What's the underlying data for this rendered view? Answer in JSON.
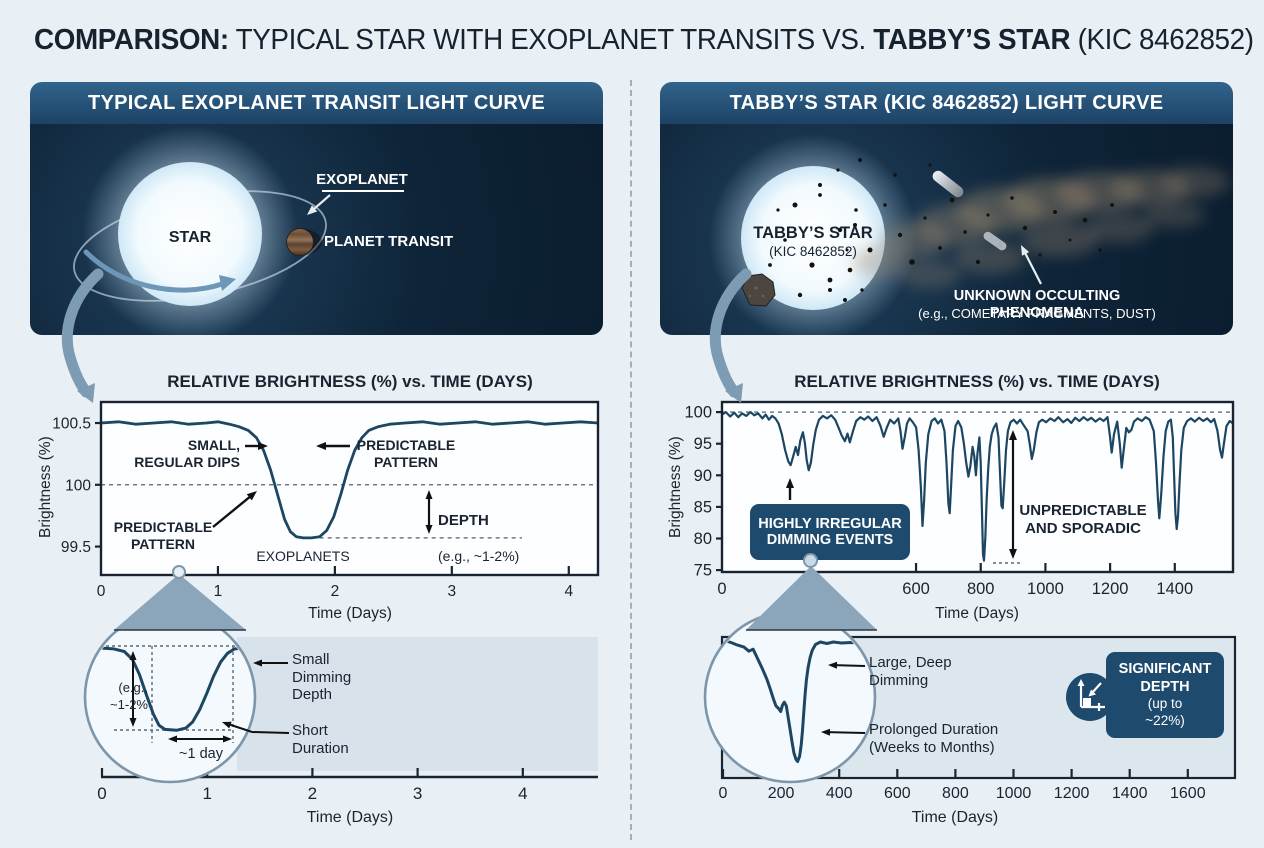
{
  "title": {
    "bold1": "COMPARISON:",
    "regular1": " TYPICAL STAR WITH EXOPLANET TRANSITS VS. ",
    "bold2": "TABBY’S STAR",
    "regular2": " (KIC 8462852)"
  },
  "left_panel": {
    "header": "TYPICAL EXOPLANET TRANSIT LIGHT CURVE",
    "star_label": "STAR",
    "exoplanet_label": "EXOPLANET",
    "planet_transit_label": "PLANET TRANSIT",
    "chart_title": "RELATIVE BRIGHTNESS (%) vs. TIME (DAYS)",
    "ylabel": "Brightness (%)",
    "xlabel": "Time (Days)",
    "annotations": {
      "small_regular_dips": "SMALL,\nREGULAR DIPS",
      "predictable_pattern_right": "PREDICTABLE\nPATTERN",
      "predictable_pattern_left": "PREDICTABLE\nPATTERN",
      "exoplanets": "EXOPLANETS",
      "depth_title": "DEPTH",
      "depth_sub": "(e.g., ~1-2%)"
    },
    "inset": {
      "depth_note": "(e.g.,\n~1-2%",
      "width_note": "~1 day",
      "label_depth": "Small\nDimming\nDepth",
      "label_duration": "Short\nDuration",
      "xlabel": "Time (Days)"
    }
  },
  "right_panel": {
    "header": "TABBY’S STAR (KIC 8462852) LIGHT CURVE",
    "star_label": "TABBY’S STAR",
    "star_sublabel": "(KIC 8462852)",
    "phenomena_label": "UNKNOWN OCCULTING PHENOMENA",
    "phenomena_sublabel": "(e.g., COMETARY FRAGMENTS, DUST)",
    "chart_title": "RELATIVE BRIGHTNESS (%) vs. TIME (DAYS)",
    "ylabel": "Brightness (%)",
    "xlabel": "Time (Days)",
    "annotations": {
      "irregular": "HIGHLY IRREGULAR\nDIMMING EVENTS",
      "unpredictable": "UNPREDICTABLE\nAND SPORADIC"
    },
    "inset": {
      "label_dimming": "Large, Deep\nDimming",
      "label_duration": "Prolonged Duration\n(Weeks to Months)",
      "xlabel": "Time (Days)",
      "badge": {
        "line1": "SIGNIFICANT",
        "line2": "DEPTH",
        "line3": "(up to",
        "line4": "~22%)"
      }
    }
  },
  "colors": {
    "page_bg": "#e9f0f5",
    "panel_header": "#24557d",
    "panel_body": "#0e2438",
    "navy_accent": "#1e4a6e",
    "curve": "#1d4663",
    "ink": "#1a2430",
    "steel_arrow": "#7d9bb3",
    "wedge": "#8ba6bb",
    "inset_fill": "#f3f9fc",
    "inset_stroke": "#7e96aa",
    "panel_light": "#d8e2ea",
    "panel_light2": "#dce6ed",
    "dashed": "#6b7a87",
    "white": "#ffffff"
  },
  "chart_data": [
    {
      "id": "typical_transit_main",
      "type": "line",
      "title": "RELATIVE BRIGHTNESS (%) vs. TIME (DAYS)",
      "xlabel": "Time (Days)",
      "ylabel": "Brightness (%)",
      "xlim": [
        0,
        4.25
      ],
      "ylim": [
        99.27,
        100.67
      ],
      "xticks": [
        0,
        1,
        2,
        3,
        4
      ],
      "yticks": [
        100.5,
        100.0,
        99.5
      ],
      "baseline_dashed": 100.0,
      "dip_level_dashed": {
        "y": 99.57,
        "x1": 1.87,
        "x2": 3.6
      },
      "points": [
        [
          0,
          100.5
        ],
        [
          0.15,
          100.51
        ],
        [
          0.3,
          100.49
        ],
        [
          0.45,
          100.5
        ],
        [
          0.6,
          100.51
        ],
        [
          0.75,
          100.49
        ],
        [
          0.9,
          100.5
        ],
        [
          1.0,
          100.51
        ],
        [
          1.1,
          100.49
        ],
        [
          1.18,
          100.47
        ],
        [
          1.26,
          100.44
        ],
        [
          1.33,
          100.38
        ],
        [
          1.39,
          100.28
        ],
        [
          1.45,
          100.12
        ],
        [
          1.51,
          99.92
        ],
        [
          1.57,
          99.72
        ],
        [
          1.62,
          99.62
        ],
        [
          1.67,
          99.58
        ],
        [
          1.73,
          99.57
        ],
        [
          1.8,
          99.57
        ],
        [
          1.87,
          99.58
        ],
        [
          1.93,
          99.63
        ],
        [
          1.99,
          99.74
        ],
        [
          2.05,
          99.92
        ],
        [
          2.11,
          100.12
        ],
        [
          2.17,
          100.28
        ],
        [
          2.23,
          100.38
        ],
        [
          2.29,
          100.44
        ],
        [
          2.37,
          100.47
        ],
        [
          2.47,
          100.49
        ],
        [
          2.6,
          100.5
        ],
        [
          2.75,
          100.51
        ],
        [
          2.9,
          100.49
        ],
        [
          3.05,
          100.5
        ],
        [
          3.2,
          100.51
        ],
        [
          3.35,
          100.49
        ],
        [
          3.5,
          100.5
        ],
        [
          3.65,
          100.51
        ],
        [
          3.8,
          100.49
        ],
        [
          3.95,
          100.5
        ],
        [
          4.1,
          100.51
        ],
        [
          4.25,
          100.5
        ]
      ]
    },
    {
      "id": "tabbys_star_main",
      "type": "line",
      "title": "RELATIVE BRIGHTNESS (%) vs. TIME (DAYS)",
      "xlabel": "Time (Days)",
      "ylabel": "Brightness (%)",
      "xlim": [
        0,
        1580
      ],
      "ylim": [
        74.7,
        101.6
      ],
      "xticks": [
        0,
        600,
        800,
        1000,
        1200,
        1400
      ],
      "xticks_hidden_by_magnifier": [
        200,
        400
      ],
      "yticks": [
        100,
        95,
        90,
        85,
        80,
        75
      ],
      "baseline_dashed": 100,
      "points": [
        [
          0,
          99.6
        ],
        [
          12,
          100
        ],
        [
          25,
          99.3
        ],
        [
          38,
          99.9
        ],
        [
          50,
          99.2
        ],
        [
          62,
          99.8
        ],
        [
          75,
          99.4
        ],
        [
          88,
          100
        ],
        [
          100,
          99.5
        ],
        [
          112,
          99.8
        ],
        [
          125,
          99.0
        ],
        [
          135,
          99.6
        ],
        [
          145,
          98.8
        ],
        [
          155,
          99.4
        ],
        [
          165,
          99.0
        ],
        [
          175,
          98.2
        ],
        [
          185,
          96.5
        ],
        [
          195,
          94.0
        ],
        [
          205,
          92.2
        ],
        [
          212,
          91.6
        ],
        [
          220,
          93.0
        ],
        [
          228,
          94.5
        ],
        [
          235,
          93.2
        ],
        [
          242,
          95.5
        ],
        [
          250,
          96.8
        ],
        [
          256,
          95.2
        ],
        [
          262,
          92.4
        ],
        [
          268,
          90.8
        ],
        [
          275,
          92.0
        ],
        [
          282,
          94.8
        ],
        [
          290,
          97.2
        ],
        [
          300,
          98.8
        ],
        [
          312,
          99.4
        ],
        [
          325,
          99.0
        ],
        [
          338,
          99.5
        ],
        [
          350,
          98.8
        ],
        [
          360,
          97.6
        ],
        [
          370,
          96.3
        ],
        [
          380,
          95.4
        ],
        [
          388,
          96.6
        ],
        [
          395,
          95.2
        ],
        [
          405,
          97.0
        ],
        [
          415,
          98.6
        ],
        [
          428,
          99.2
        ],
        [
          440,
          98.8
        ],
        [
          452,
          99.3
        ],
        [
          465,
          98.6
        ],
        [
          478,
          99.2
        ],
        [
          490,
          97.8
        ],
        [
          500,
          96.1
        ],
        [
          510,
          97.6
        ],
        [
          520,
          98.8
        ],
        [
          532,
          98.2
        ],
        [
          545,
          99.0
        ],
        [
          552,
          97.0
        ],
        [
          558,
          94.2
        ],
        [
          565,
          96.0
        ],
        [
          572,
          98.2
        ],
        [
          580,
          99.0
        ],
        [
          590,
          98.4
        ],
        [
          600,
          97.6
        ],
        [
          608,
          94.0
        ],
        [
          615,
          88.0
        ],
        [
          620,
          82.0
        ],
        [
          625,
          86.0
        ],
        [
          630,
          92.0
        ],
        [
          638,
          96.5
        ],
        [
          648,
          98.6
        ],
        [
          658,
          99.0
        ],
        [
          668,
          98.2
        ],
        [
          678,
          98.8
        ],
        [
          688,
          97.0
        ],
        [
          694,
          92.0
        ],
        [
          700,
          85.5
        ],
        [
          704,
          84.0
        ],
        [
          708,
          88.0
        ],
        [
          714,
          94.0
        ],
        [
          722,
          97.8
        ],
        [
          730,
          98.6
        ],
        [
          740,
          97.6
        ],
        [
          748,
          95.0
        ],
        [
          755,
          92.0
        ],
        [
          762,
          89.8
        ],
        [
          768,
          91.5
        ],
        [
          775,
          94.5
        ],
        [
          780,
          93.0
        ],
        [
          785,
          90.0
        ],
        [
          790,
          93.5
        ],
        [
          796,
          96.0
        ],
        [
          800,
          92.0
        ],
        [
          804,
          84.0
        ],
        [
          807,
          77.5
        ],
        [
          810,
          76.5
        ],
        [
          814,
          80.0
        ],
        [
          818,
          86.0
        ],
        [
          823,
          91.0
        ],
        [
          828,
          94.5
        ],
        [
          834,
          96.5
        ],
        [
          840,
          97.5
        ],
        [
          848,
          98.2
        ],
        [
          855,
          96.0
        ],
        [
          860,
          90.0
        ],
        [
          864,
          85.2
        ],
        [
          868,
          84.8
        ],
        [
          873,
          89.0
        ],
        [
          878,
          94.0
        ],
        [
          884,
          97.0
        ],
        [
          892,
          98.4
        ],
        [
          902,
          98.8
        ],
        [
          912,
          98.2
        ],
        [
          922,
          98.8
        ],
        [
          932,
          98.0
        ],
        [
          945,
          97.0
        ],
        [
          952,
          94.8
        ],
        [
          958,
          92.6
        ],
        [
          964,
          94.0
        ],
        [
          972,
          96.8
        ],
        [
          980,
          98.4
        ],
        [
          990,
          98.8
        ],
        [
          1002,
          98.4
        ],
        [
          1015,
          99.0
        ],
        [
          1028,
          98.6
        ],
        [
          1040,
          99.2
        ],
        [
          1055,
          98.4
        ],
        [
          1068,
          98.9
        ],
        [
          1080,
          98.3
        ],
        [
          1092,
          99.1
        ],
        [
          1105,
          98.6
        ],
        [
          1118,
          99.2
        ],
        [
          1130,
          98.7
        ],
        [
          1142,
          99.1
        ],
        [
          1155,
          98.5
        ],
        [
          1168,
          99.0
        ],
        [
          1180,
          98.6
        ],
        [
          1192,
          99.2
        ],
        [
          1200,
          96.0
        ],
        [
          1205,
          93.6
        ],
        [
          1212,
          96.5
        ],
        [
          1222,
          98.5
        ],
        [
          1230,
          95.0
        ],
        [
          1236,
          91.2
        ],
        [
          1242,
          94.0
        ],
        [
          1250,
          97.5
        ],
        [
          1258,
          96.8
        ],
        [
          1266,
          97.2
        ],
        [
          1274,
          98.5
        ],
        [
          1285,
          99.0
        ],
        [
          1298,
          98.6
        ],
        [
          1310,
          99.2
        ],
        [
          1322,
          98.8
        ],
        [
          1335,
          97.0
        ],
        [
          1342,
          92.0
        ],
        [
          1348,
          86.0
        ],
        [
          1352,
          83.2
        ],
        [
          1358,
          87.0
        ],
        [
          1365,
          93.0
        ],
        [
          1372,
          97.0
        ],
        [
          1380,
          98.5
        ],
        [
          1388,
          98.8
        ],
        [
          1394,
          96.0
        ],
        [
          1398,
          90.0
        ],
        [
          1402,
          84.0
        ],
        [
          1406,
          81.5
        ],
        [
          1410,
          83.5
        ],
        [
          1415,
          89.0
        ],
        [
          1420,
          94.0
        ],
        [
          1428,
          97.5
        ],
        [
          1438,
          98.6
        ],
        [
          1450,
          99.0
        ],
        [
          1462,
          98.5
        ],
        [
          1475,
          99.1
        ],
        [
          1488,
          98.6
        ],
        [
          1500,
          99.0
        ],
        [
          1512,
          98.4
        ],
        [
          1522,
          98.9
        ],
        [
          1532,
          97.0
        ],
        [
          1540,
          94.0
        ],
        [
          1546,
          92.8
        ],
        [
          1552,
          95.0
        ],
        [
          1560,
          97.8
        ],
        [
          1570,
          98.6
        ],
        [
          1580,
          98.2
        ]
      ]
    },
    {
      "id": "typical_transit_inset",
      "type": "line",
      "xlabel": "Time (Days)",
      "xlim": [
        0,
        4
      ],
      "xticks": [
        0,
        1,
        2,
        3,
        4
      ],
      "depth_note": "(e.g., ~1-2%",
      "duration_note": "~1 day",
      "points": [
        [
          0,
          100.5
        ],
        [
          0.12,
          100.5
        ],
        [
          0.24,
          100.49
        ],
        [
          0.33,
          100.46
        ],
        [
          0.4,
          100.37
        ],
        [
          0.46,
          100.2
        ],
        [
          0.52,
          99.97
        ],
        [
          0.58,
          99.75
        ],
        [
          0.63,
          99.62
        ],
        [
          0.68,
          99.575
        ],
        [
          0.78,
          99.565
        ],
        [
          0.86,
          99.59
        ],
        [
          0.92,
          99.66
        ],
        [
          0.98,
          99.8
        ],
        [
          1.04,
          99.98
        ],
        [
          1.1,
          100.18
        ],
        [
          1.16,
          100.34
        ],
        [
          1.22,
          100.44
        ],
        [
          1.28,
          100.49
        ],
        [
          1.36,
          100.5
        ],
        [
          1.45,
          100.5
        ]
      ]
    },
    {
      "id": "tabbys_star_inset",
      "type": "line",
      "xlabel": "Time (Days)",
      "xlim": [
        0,
        1760
      ],
      "xticks": [
        0,
        200,
        400,
        600,
        800,
        1000,
        1200,
        1400,
        1600
      ],
      "max_depth_note": "up to ~22%",
      "points": [
        [
          0,
          99.9
        ],
        [
          15,
          100.4
        ],
        [
          28,
          99.7
        ],
        [
          40,
          100.3
        ],
        [
          52,
          99.8
        ],
        [
          64,
          100.4
        ],
        [
          80,
          100.1
        ],
        [
          100,
          99.6
        ],
        [
          120,
          99.2
        ],
        [
          135,
          98.4
        ],
        [
          148,
          98.8
        ],
        [
          160,
          97.2
        ],
        [
          175,
          95.2
        ],
        [
          190,
          93.0
        ],
        [
          200,
          91.2
        ],
        [
          210,
          89.2
        ],
        [
          218,
          87.8
        ],
        [
          226,
          87.3
        ],
        [
          233,
          86.7
        ],
        [
          238,
          87.9
        ],
        [
          244,
          88.5
        ],
        [
          250,
          87.8
        ],
        [
          256,
          85.5
        ],
        [
          262,
          83.2
        ],
        [
          268,
          80.7
        ],
        [
          274,
          78.6
        ],
        [
          280,
          77.4
        ],
        [
          285,
          77.0
        ],
        [
          291,
          78.0
        ],
        [
          296,
          80.2
        ],
        [
          300,
          83.0
        ],
        [
          304,
          86.6
        ],
        [
          308,
          90.0
        ],
        [
          312,
          92.8
        ],
        [
          317,
          95.1
        ],
        [
          323,
          97.1
        ],
        [
          330,
          98.6
        ],
        [
          340,
          99.7
        ],
        [
          355,
          100.2
        ],
        [
          375,
          99.9
        ],
        [
          395,
          100.2
        ],
        [
          420,
          100.0
        ],
        [
          450,
          100.1
        ],
        [
          490,
          99.9
        ],
        [
          530,
          100.0
        ]
      ]
    }
  ]
}
